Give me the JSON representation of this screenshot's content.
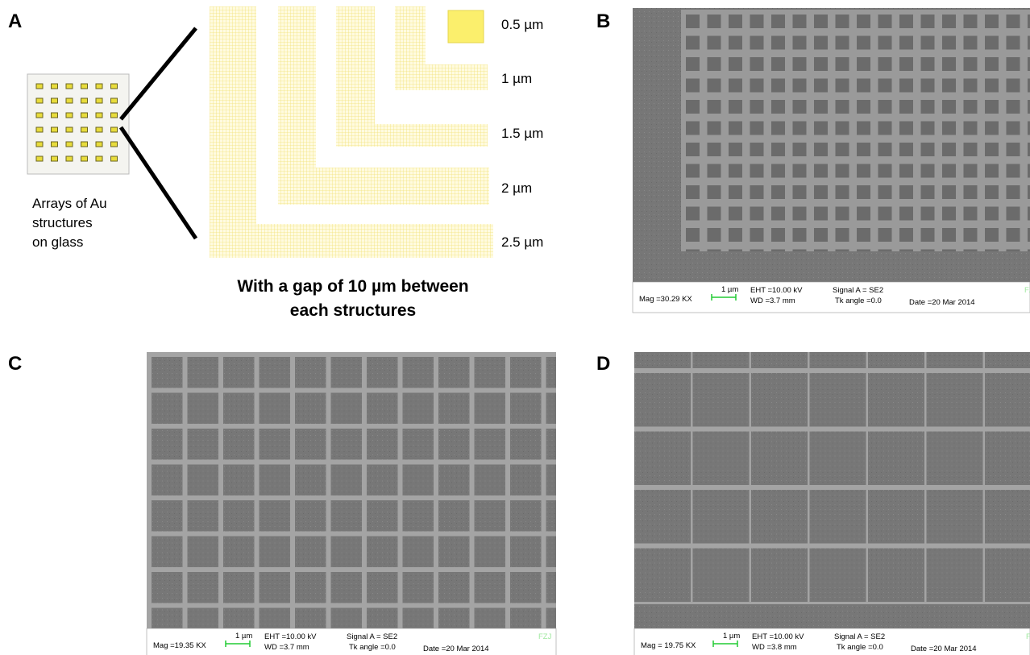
{
  "panels": {
    "a": {
      "label": "A",
      "array_caption": [
        "Arrays of Au",
        "structures",
        "on glass"
      ],
      "sizes": [
        "0.5 µm",
        "1 µm",
        "1.5 µm",
        "2 µm",
        "2.5 µm"
      ],
      "caption": [
        "With a gap of 10 µm between",
        "each structures"
      ]
    },
    "b": {
      "label": "B",
      "info": {
        "mag": "Mag =30.29 KX",
        "scale": "1 µm",
        "eht": "EHT =10.00 kV",
        "wd": "WD =3.7 mm",
        "signal": "Signal A = SE2",
        "tilt": "Tk angle =0.0",
        "date": "Date =20 Mar 2014",
        "logo": "FZJ"
      }
    },
    "c": {
      "label": "C",
      "info": {
        "mag": "Mag =19.35 KX",
        "scale": "1 µm",
        "eht": "EHT =10.00 kV",
        "wd": "WD =3.7 mm",
        "signal": "Signal A = SE2",
        "tilt": "Tk angle =0.0",
        "date": "Date =20 Mar 2014",
        "logo": "FZJ"
      }
    },
    "d": {
      "label": "D",
      "info": {
        "mag": "Mag = 19.75 KX",
        "scale": "1 µm",
        "eht": "EHT =10.00 kV",
        "wd": "WD =3.8 mm",
        "signal": "Signal A = SE2",
        "tilt": "Tk angle =0.0",
        "date": "Date =20 Mar 2014",
        "logo": "FZJ"
      }
    }
  }
}
